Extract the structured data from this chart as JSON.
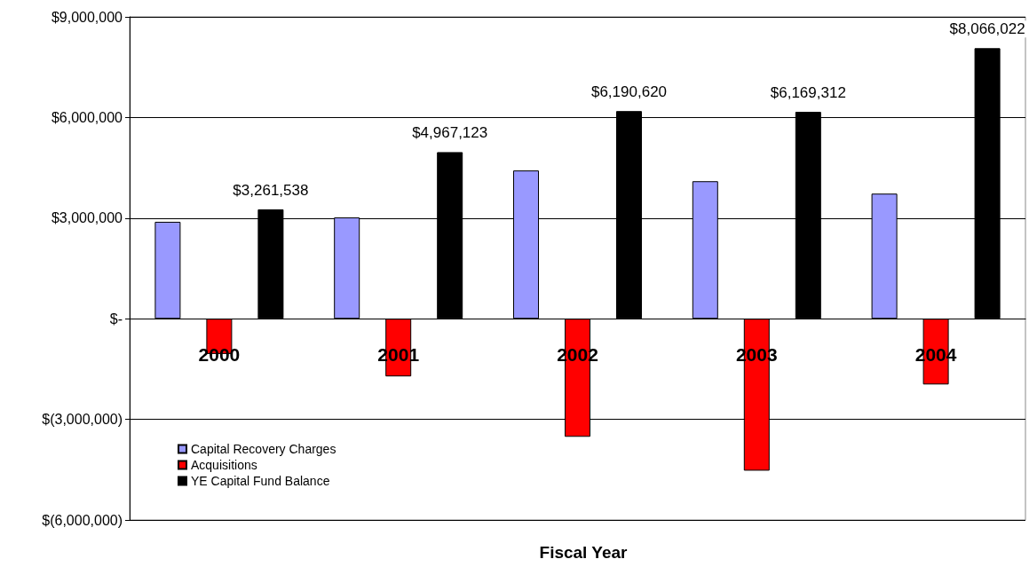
{
  "chart_data": {
    "type": "bar",
    "xlabel": "Fiscal Year",
    "categories": [
      "2000",
      "2001",
      "2002",
      "2003",
      "2004"
    ],
    "series": [
      {
        "name": "Capital Recovery Charges",
        "color": "#9999ff",
        "values": [
          2890000,
          3020000,
          4420000,
          4100000,
          3730000
        ]
      },
      {
        "name": "Acquisitions",
        "color": "#ff0000",
        "values": [
          -1050000,
          -1720000,
          -3520000,
          -4530000,
          -1960000
        ]
      },
      {
        "name": "YE Capital Fund Balance",
        "color": "#000000",
        "values": [
          3261538,
          4967123,
          6190620,
          6169312,
          8066022
        ],
        "value_labels": [
          "$3,261,538",
          "$4,967,123",
          "$6,190,620",
          "$6,169,312",
          "$8,066,022"
        ]
      }
    ],
    "ylim": [
      -6000000,
      9000000
    ],
    "yticks": [
      {
        "value": -6000000,
        "label": "$(6,000,000)"
      },
      {
        "value": -3000000,
        "label": "$(3,000,000)"
      },
      {
        "value": 0,
        "label": "$-"
      },
      {
        "value": 3000000,
        "label": "$3,000,000"
      },
      {
        "value": 6000000,
        "label": "$6,000,000"
      },
      {
        "value": 9000000,
        "label": "$9,000,000"
      }
    ],
    "grid": "y",
    "legend": "bottom left"
  }
}
